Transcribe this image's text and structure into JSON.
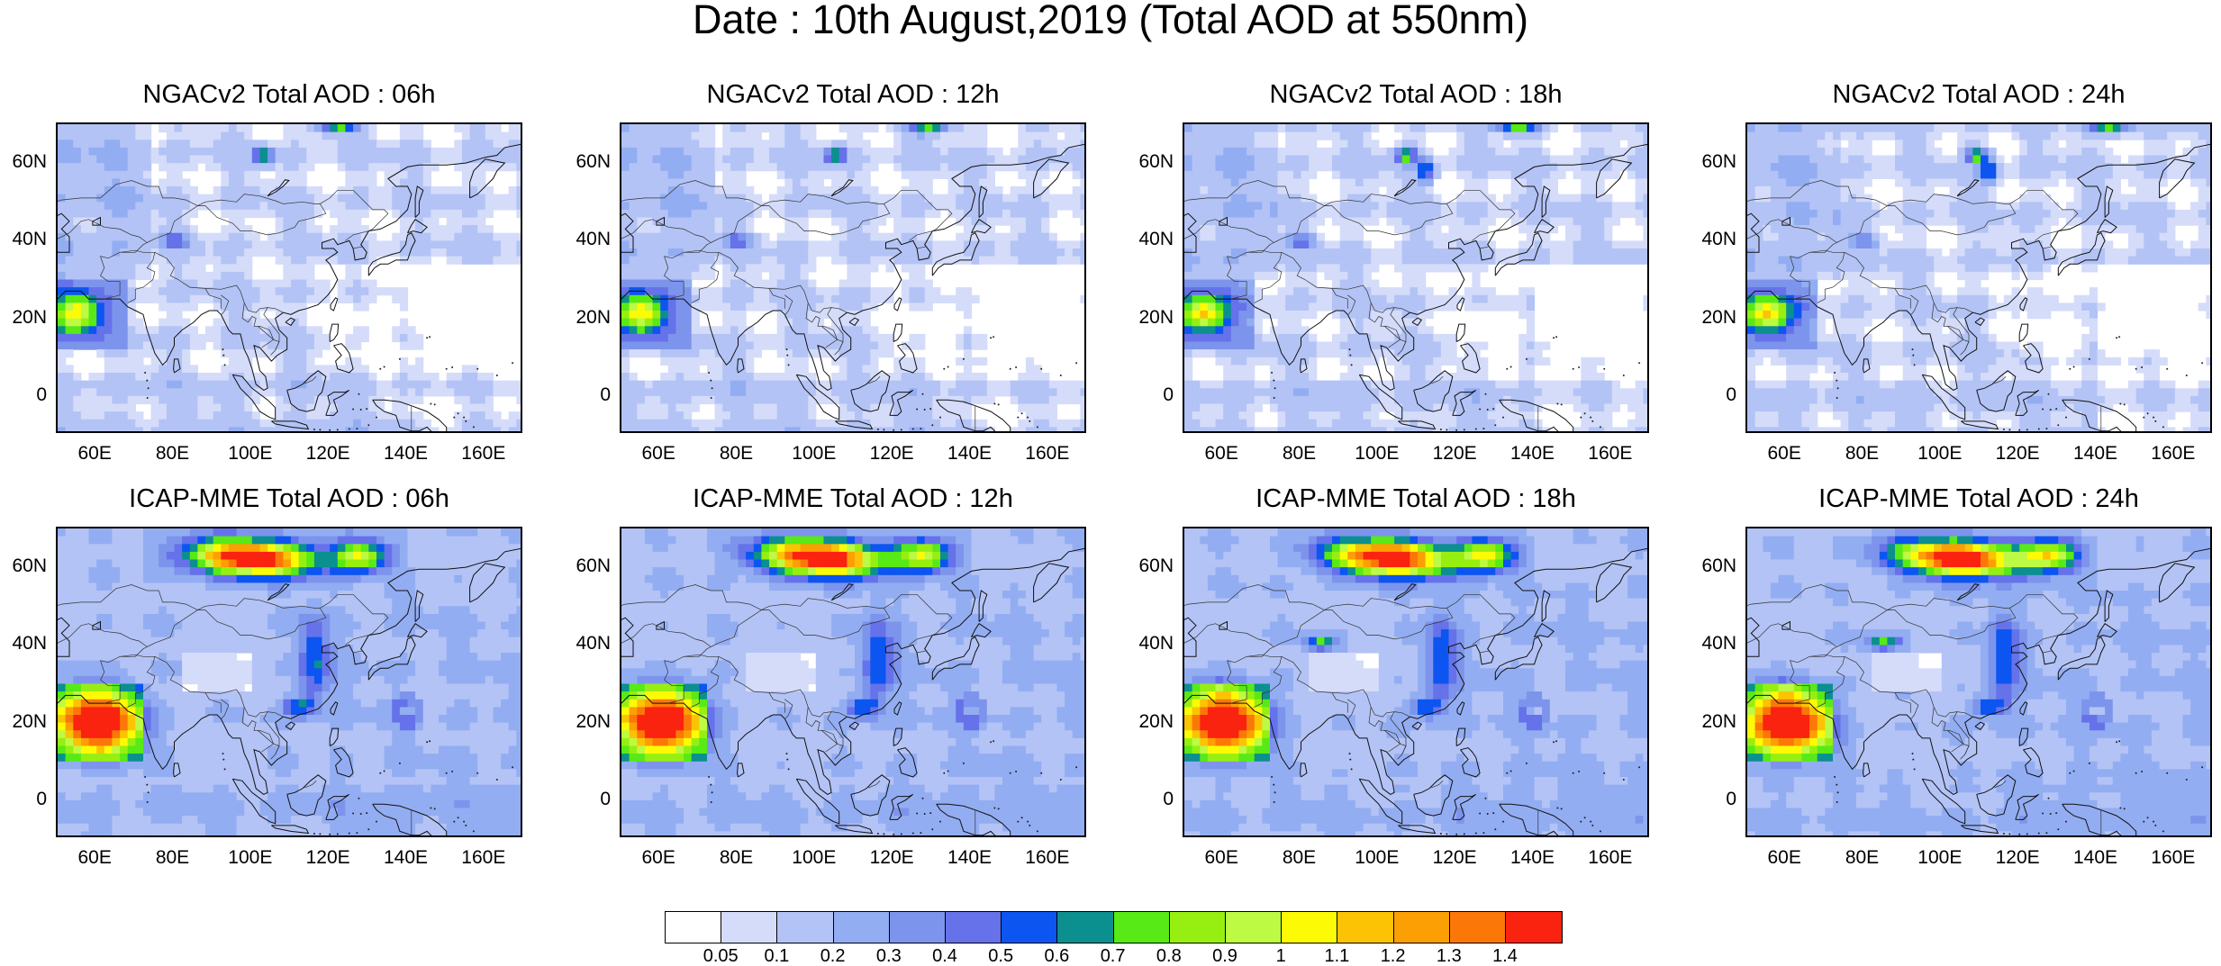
{
  "title": "Date : 10th August,2019 (Total AOD at 550nm)",
  "panels": [
    {
      "title": "NGACv2 Total AOD : 06h",
      "model": "NGACv2",
      "hour": "06h"
    },
    {
      "title": "NGACv2 Total AOD : 12h",
      "model": "NGACv2",
      "hour": "12h"
    },
    {
      "title": "NGACv2 Total AOD : 18h",
      "model": "NGACv2",
      "hour": "18h"
    },
    {
      "title": "NGACv2 Total AOD : 24h",
      "model": "NGACv2",
      "hour": "24h"
    },
    {
      "title": "ICAP-MME Total AOD : 06h",
      "model": "ICAP-MME",
      "hour": "06h"
    },
    {
      "title": "ICAP-MME Total AOD : 12h",
      "model": "ICAP-MME",
      "hour": "12h"
    },
    {
      "title": "ICAP-MME Total AOD : 18h",
      "model": "ICAP-MME",
      "hour": "18h"
    },
    {
      "title": "ICAP-MME Total AOD : 24h",
      "model": "ICAP-MME",
      "hour": "24h"
    }
  ],
  "lat_ticks": [
    "60N",
    "40N",
    "20N",
    "0"
  ],
  "lon_ticks": [
    "60E",
    "80E",
    "100E",
    "120E",
    "140E",
    "160E"
  ],
  "colorbar": {
    "labels": [
      "0.05",
      "0.1",
      "0.2",
      "0.3",
      "0.4",
      "0.5",
      "0.6",
      "0.7",
      "0.8",
      "0.9",
      "1",
      "1.1",
      "1.2",
      "1.3",
      "1.4"
    ],
    "colors": [
      "#ffffff",
      "#d4dcfa",
      "#b3c3f5",
      "#93adf2",
      "#7d94ec",
      "#6572ea",
      "#0c55f0",
      "#0b8f8f",
      "#57ea16",
      "#97ef11",
      "#bdfa43",
      "#fcfb05",
      "#fbc304",
      "#fc9f04",
      "#fb7808",
      "#fa230f"
    ]
  }
}
